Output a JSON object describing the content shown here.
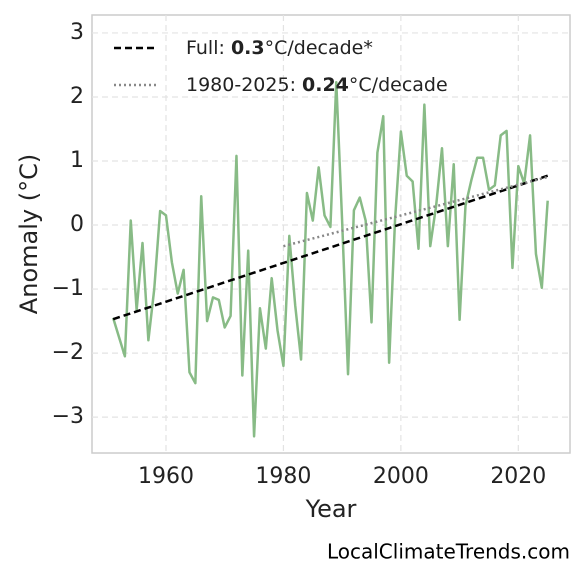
{
  "chart_data": {
    "type": "line",
    "x_label": "Year",
    "y_label": "Anomaly (°C)",
    "watermark": "LocalClimateTrends.com",
    "xlim": [
      1947.4,
      2028.8
    ],
    "ylim": [
      -3.56,
      3.28
    ],
    "xticks": [
      1960,
      1980,
      2000,
      2020
    ],
    "yticks": [
      {
        "value": -3,
        "label": "−3"
      },
      {
        "value": -2,
        "label": "−2"
      },
      {
        "value": -1,
        "label": "−1"
      },
      0,
      1,
      2,
      3
    ],
    "grid": true,
    "x": [
      1951,
      1952,
      1953,
      1954,
      1955,
      1956,
      1957,
      1958,
      1959,
      1960,
      1961,
      1962,
      1963,
      1964,
      1965,
      1966,
      1967,
      1968,
      1969,
      1970,
      1971,
      1972,
      1973,
      1974,
      1975,
      1976,
      1977,
      1978,
      1979,
      1980,
      1981,
      1982,
      1983,
      1984,
      1985,
      1986,
      1987,
      1988,
      1989,
      1990,
      1991,
      1992,
      1993,
      1994,
      1995,
      1996,
      1997,
      1998,
      1999,
      2000,
      2001,
      2002,
      2003,
      2004,
      2005,
      2006,
      2007,
      2008,
      2009,
      2010,
      2011,
      2012,
      2013,
      2014,
      2015,
      2016,
      2017,
      2018,
      2019,
      2020,
      2021,
      2022,
      2023,
      2024,
      2025
    ],
    "values": [
      -1.45,
      -1.75,
      -2.05,
      0.07,
      -1.33,
      -0.28,
      -1.8,
      -1.0,
      0.22,
      0.15,
      -0.58,
      -1.07,
      -0.7,
      -2.3,
      -2.47,
      0.45,
      -1.5,
      -1.13,
      -1.17,
      -1.6,
      -1.42,
      1.08,
      -2.35,
      -0.4,
      -3.3,
      -1.3,
      -1.93,
      -0.83,
      -1.65,
      -2.2,
      -0.17,
      -1.25,
      -2.1,
      0.5,
      0.07,
      0.9,
      0.15,
      -0.03,
      2.23,
      0.05,
      -2.33,
      0.23,
      0.43,
      0.07,
      -1.52,
      1.13,
      1.7,
      -2.15,
      0.07,
      1.46,
      0.77,
      0.68,
      -0.37,
      1.88,
      -0.33,
      0.3,
      1.2,
      -0.33,
      0.95,
      -1.48,
      0.3,
      0.7,
      1.05,
      1.05,
      0.55,
      0.62,
      1.4,
      1.47,
      -0.67,
      0.92,
      0.65,
      1.4,
      -0.45,
      -0.98,
      0.38
    ],
    "color": "#88bb86",
    "trends": [
      {
        "x": [
          1951,
          2025
        ],
        "values": [
          -1.47,
          0.77
        ],
        "color": "#000000",
        "dash": "dashed"
      },
      {
        "x": [
          1980,
          2025
        ],
        "values": [
          -0.33,
          0.75
        ],
        "color": "#888888",
        "dash": "dotted"
      }
    ],
    "legend": [
      {
        "prefix": "Full: ",
        "bold": "0.3",
        "suffix": "°C/decade*"
      },
      {
        "prefix": "1980-2025: ",
        "bold": "0.24",
        "suffix": "°C/decade"
      }
    ],
    "legend_position": "upper left"
  }
}
